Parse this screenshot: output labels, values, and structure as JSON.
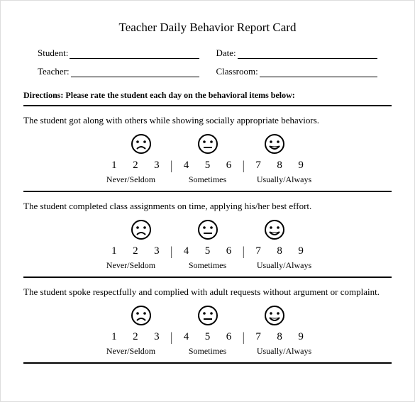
{
  "title": "Teacher Daily Behavior Report Card",
  "fields": {
    "student_label": "Student:",
    "date_label": "Date:",
    "teacher_label": "Teacher:",
    "classroom_label": "Classroom:"
  },
  "directions": "Directions: Please rate the student each day on the behavioral items below:",
  "scale": {
    "numbers": [
      "1",
      "2",
      "3",
      "4",
      "5",
      "6",
      "7",
      "8",
      "9"
    ],
    "labels": [
      "Never/Seldom",
      "Sometimes",
      "Usually/Always"
    ],
    "separator": "|"
  },
  "faces": {
    "sad": "sad-face-icon",
    "neutral": "neutral-face-icon",
    "happy": "happy-face-icon"
  },
  "questions": [
    "The student got along with others while showing socially appropriate behaviors.",
    "The student completed class assignments on time, applying his/her best effort.",
    "The student spoke respectfully and complied with adult requests without argument or complaint."
  ],
  "colors": {
    "text": "#000000",
    "background": "#ffffff",
    "rule": "#000000"
  },
  "typography": {
    "family": "Times New Roman",
    "title_size_pt": 17,
    "body_size_pt": 13,
    "directions_size_pt": 12,
    "numbers_size_pt": 15
  }
}
